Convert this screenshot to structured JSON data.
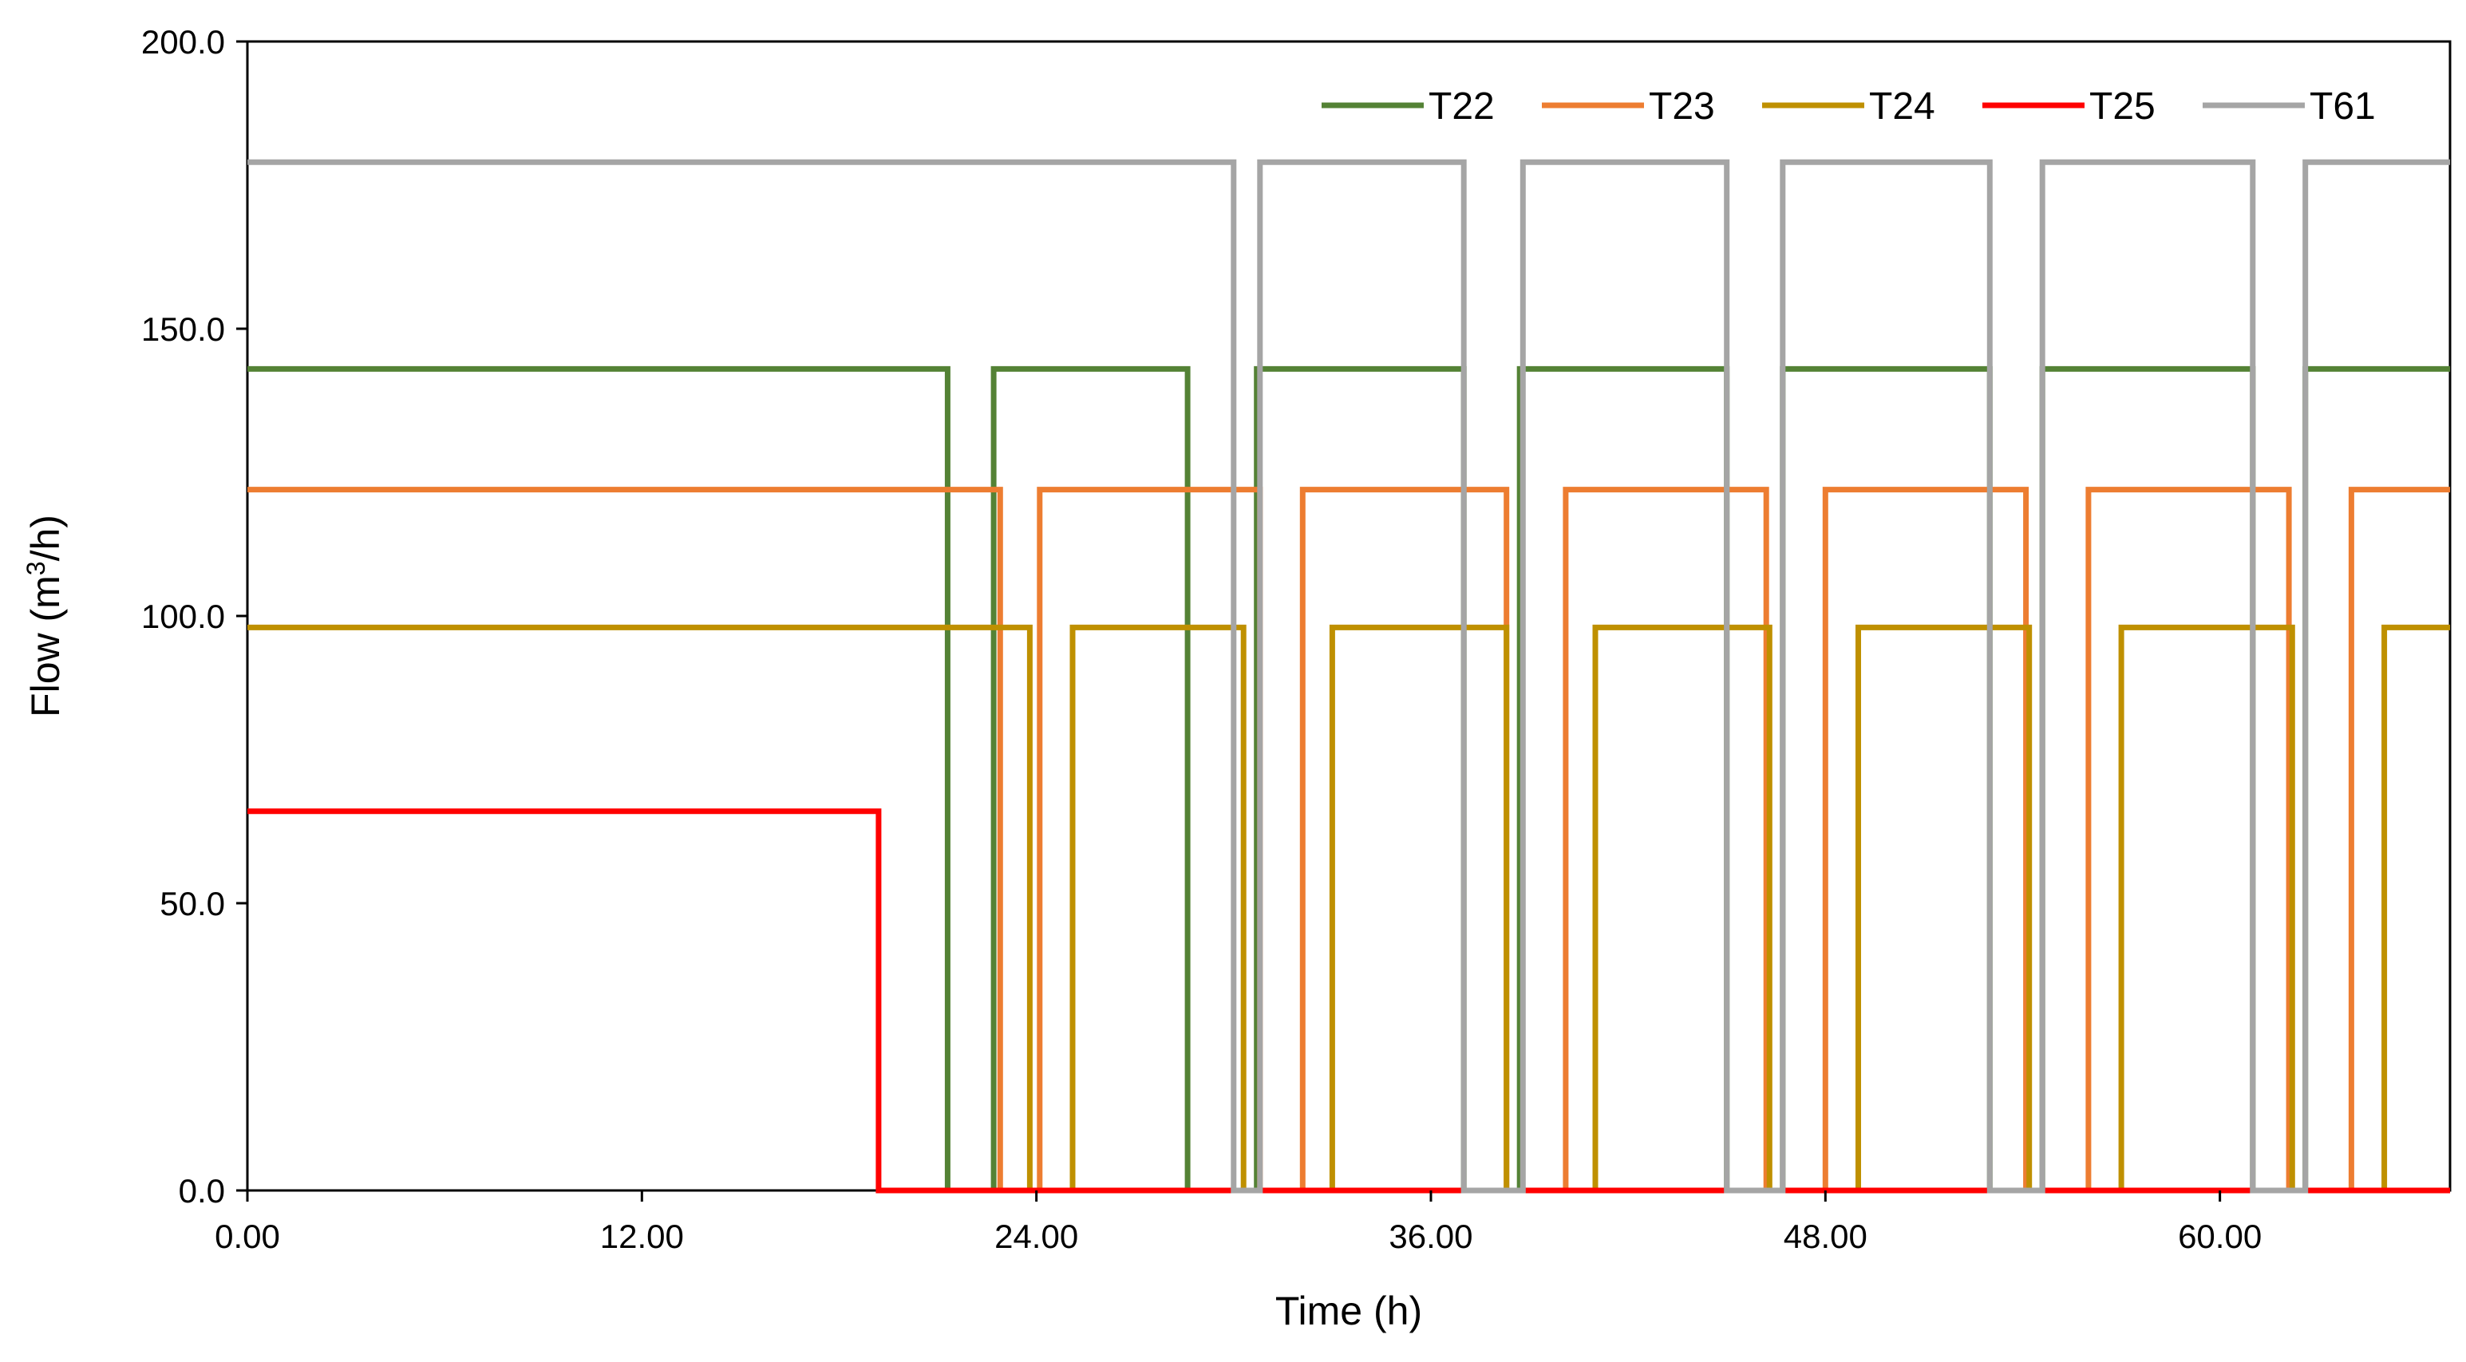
{
  "chart_data": {
    "type": "line",
    "title": "",
    "xlabel": "Time (h)",
    "ylabel_prefix": "Flow (m",
    "ylabel_superscript": "3",
    "ylabel_suffix": "/h)",
    "xlim": [
      0,
      67
    ],
    "ylim": [
      0,
      200
    ],
    "x_ticks": [
      0,
      12,
      24,
      36,
      48,
      60
    ],
    "x_tick_labels": [
      "0.00",
      "12.00",
      "24.00",
      "36.00",
      "48.00",
      "60.00"
    ],
    "y_ticks": [
      0,
      50,
      100,
      150,
      200
    ],
    "y_tick_labels": [
      "0.0",
      "50.0",
      "100.0",
      "150.0",
      "200.0"
    ],
    "grid": false,
    "legend_position": "top-right",
    "series": [
      {
        "name": "T22",
        "color": "#548235",
        "x": [
          0,
          21.3,
          21.3,
          22.7,
          22.7,
          28.6,
          28.6,
          30.7,
          30.7,
          37.0,
          37.0,
          38.7,
          38.7,
          45.0,
          45.0,
          46.7,
          46.7,
          53.0,
          53.0,
          54.6,
          54.6,
          61.0,
          61.0,
          62.6,
          62.6,
          67.0
        ],
        "y": [
          143,
          143,
          0,
          0,
          143,
          143,
          0,
          0,
          143,
          143,
          0,
          0,
          143,
          143,
          0,
          0,
          143,
          143,
          0,
          0,
          143,
          143,
          0,
          0,
          143,
          143
        ]
      },
      {
        "name": "T23",
        "color": "#ED7D31",
        "x": [
          0,
          22.9,
          22.9,
          24.1,
          24.1,
          30.8,
          30.8,
          32.1,
          32.1,
          38.3,
          38.3,
          40.1,
          40.1,
          46.2,
          46.2,
          48.0,
          48.0,
          54.1,
          54.1,
          56.0,
          56.0,
          62.1,
          62.1,
          64.0,
          64.0,
          67.0
        ],
        "y": [
          122,
          122,
          0,
          0,
          122,
          122,
          0,
          0,
          122,
          122,
          0,
          0,
          122,
          122,
          0,
          0,
          122,
          122,
          0,
          0,
          122,
          122,
          0,
          0,
          122,
          122
        ]
      },
      {
        "name": "T24",
        "color": "#BF9000",
        "x": [
          0,
          23.8,
          23.8,
          25.1,
          25.1,
          30.3,
          30.3,
          33.0,
          33.0,
          38.3,
          38.3,
          41.0,
          41.0,
          46.3,
          46.3,
          49.0,
          49.0,
          54.2,
          54.2,
          57.0,
          57.0,
          62.2,
          62.2,
          65.0,
          65.0,
          67.0
        ],
        "y": [
          98,
          98,
          0,
          0,
          98,
          98,
          0,
          0,
          98,
          98,
          0,
          0,
          98,
          98,
          0,
          0,
          98,
          98,
          0,
          0,
          98,
          98,
          0,
          0,
          98,
          98
        ]
      },
      {
        "name": "T25",
        "color": "#FF0000",
        "x": [
          0,
          19.2,
          19.2,
          67.0
        ],
        "y": [
          66,
          66,
          0,
          0
        ]
      },
      {
        "name": "T61",
        "color": "#A5A5A5",
        "x": [
          0,
          30.0,
          30.0,
          30.8,
          30.8,
          37.0,
          37.0,
          38.8,
          38.8,
          45.0,
          45.0,
          46.7,
          46.7,
          53.0,
          53.0,
          54.6,
          54.6,
          61.0,
          61.0,
          62.6,
          62.6,
          67.0
        ],
        "y": [
          179,
          179,
          0,
          0,
          179,
          179,
          0,
          0,
          179,
          179,
          0,
          0,
          179,
          179,
          0,
          0,
          179,
          179,
          0,
          0,
          179,
          179
        ]
      }
    ]
  }
}
